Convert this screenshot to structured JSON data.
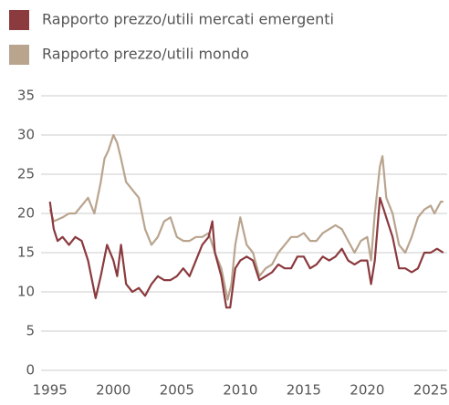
{
  "chart_data": {
    "type": "line",
    "series": [
      {
        "name": "Rapporto prezzo/utili mercati emergenti",
        "color": "#8b3a3e",
        "x": [
          1995,
          1995.3,
          1995.6,
          1996,
          1996.5,
          1997,
          1997.5,
          1998,
          1998.6,
          1999,
          1999.5,
          2000,
          2000.3,
          2000.6,
          2001,
          2001.5,
          2002,
          2002.5,
          2003,
          2003.5,
          2004,
          2004.5,
          2005,
          2005.5,
          2006,
          2006.5,
          2007,
          2007.5,
          2007.8,
          2008,
          2008.5,
          2008.9,
          2009.2,
          2009.6,
          2010,
          2010.5,
          2011,
          2011.5,
          2012,
          2012.5,
          2013,
          2013.5,
          2014,
          2014.5,
          2015,
          2015.5,
          2016,
          2016.5,
          2017,
          2017.5,
          2018,
          2018.5,
          2019,
          2019.5,
          2020,
          2020.3,
          2020.6,
          2021,
          2021.3,
          2021.6,
          2022,
          2022.5,
          2023,
          2023.5,
          2024,
          2024.5,
          2025,
          2025.5,
          2026
        ],
        "values": [
          21.5,
          18,
          16.5,
          17,
          16,
          17,
          16.5,
          14,
          9.2,
          12,
          16,
          14,
          12,
          16,
          11,
          10,
          10.5,
          9.5,
          11,
          12,
          11.5,
          11.5,
          12,
          13,
          12,
          14,
          16,
          17,
          19,
          15,
          12,
          8,
          8,
          13,
          14,
          14.5,
          14,
          11.5,
          12,
          12.5,
          13.5,
          13,
          13,
          14.5,
          14.5,
          13,
          13.5,
          14.5,
          14,
          14.5,
          15.5,
          14,
          13.5,
          14,
          14,
          11,
          14,
          22,
          20.5,
          19,
          17,
          13,
          13,
          12.5,
          13,
          15,
          15,
          15.5,
          15
        ]
      },
      {
        "name": "Rapporto prezzo/utili mondo",
        "color": "#b9a48e",
        "x": [
          1995,
          1995.3,
          1996,
          1996.5,
          1997,
          1997.5,
          1998,
          1998.5,
          1999,
          1999.3,
          1999.6,
          2000,
          2000.3,
          2000.6,
          2001,
          2001.5,
          2002,
          2002.5,
          2003,
          2003.5,
          2004,
          2004.5,
          2005,
          2005.5,
          2006,
          2006.5,
          2007,
          2007.5,
          2008,
          2008.5,
          2009,
          2009.3,
          2009.6,
          2010,
          2010.5,
          2011,
          2011.5,
          2012,
          2012.5,
          2013,
          2013.5,
          2014,
          2014.5,
          2015,
          2015.5,
          2016,
          2016.5,
          2017,
          2017.5,
          2018,
          2018.5,
          2019,
          2019.5,
          2020,
          2020.3,
          2020.6,
          2021,
          2021.2,
          2021.5,
          2022,
          2022.5,
          2023,
          2023.5,
          2024,
          2024.5,
          2025,
          2025.3,
          2025.8,
          2026
        ],
        "values": [
          20.5,
          19,
          19.5,
          20,
          20,
          21,
          22,
          20,
          24,
          27,
          28,
          30,
          29,
          27,
          24,
          23,
          22,
          18,
          16,
          17,
          19,
          19.5,
          17,
          16.5,
          16.5,
          17,
          17,
          17.5,
          15,
          13,
          9,
          11,
          16,
          19.5,
          16,
          15,
          12,
          13,
          13.5,
          15,
          16,
          17,
          17,
          17.5,
          16.5,
          16.5,
          17.5,
          18,
          18.5,
          18,
          16.5,
          15,
          16.5,
          17,
          14,
          20,
          26,
          27.3,
          22,
          20,
          16,
          15,
          17,
          19.5,
          20.5,
          21,
          20,
          21.5,
          21.5
        ]
      }
    ],
    "xlim": [
      1994.3,
      2026.3
    ],
    "xticks": [
      1995,
      2000,
      2005,
      2010,
      2015,
      2020,
      2025
    ],
    "ylim": [
      0,
      35
    ],
    "yticks": [
      0,
      5,
      10,
      15,
      20,
      25,
      30,
      35
    ],
    "grid": true
  }
}
